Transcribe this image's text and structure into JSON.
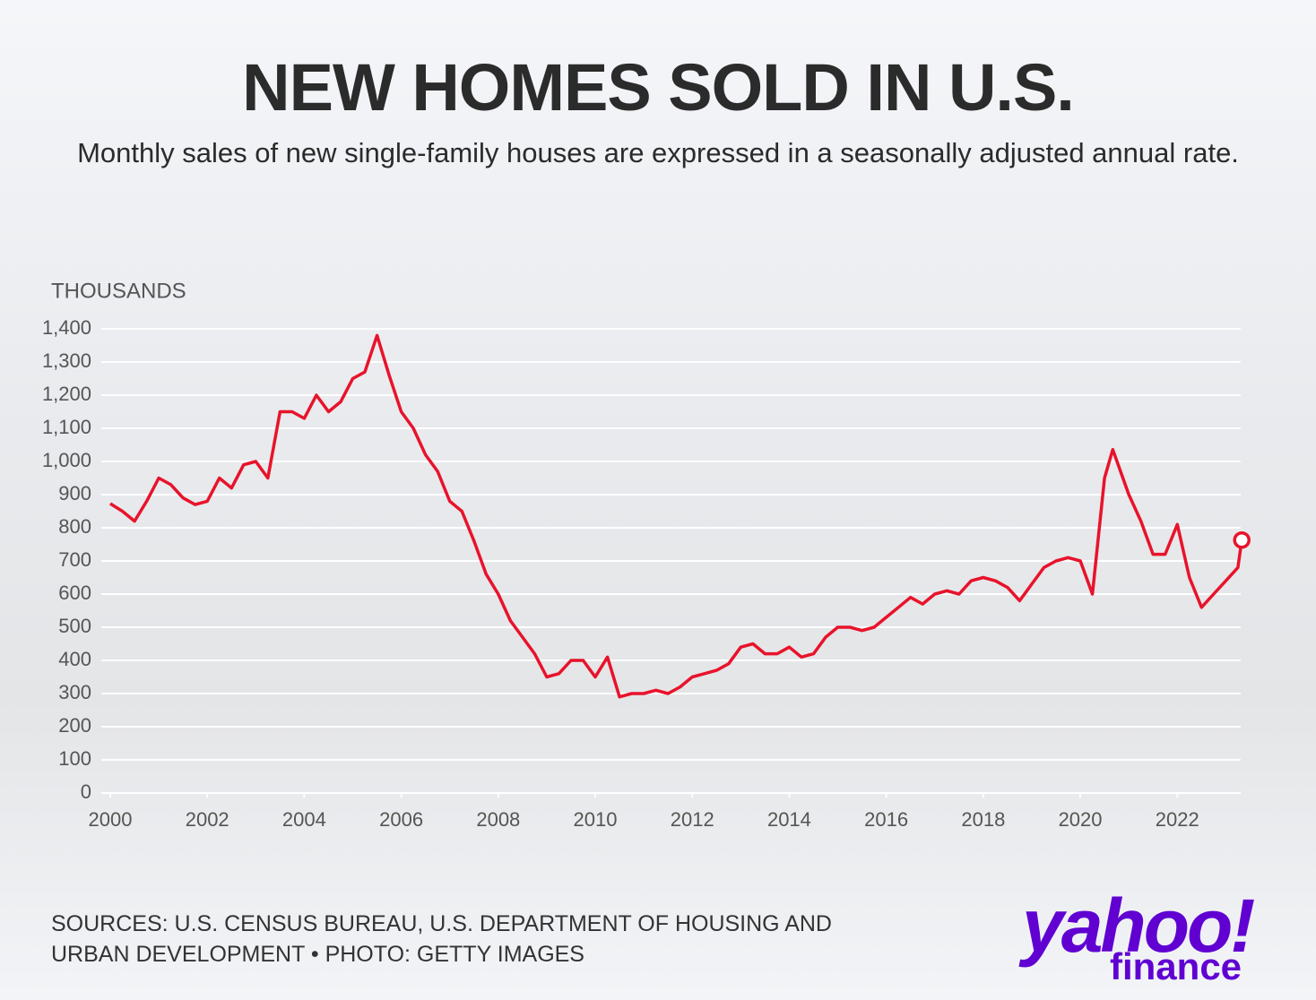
{
  "chart_data": {
    "type": "line",
    "title": "NEW HOMES SOLD IN U.S.",
    "subtitle": "Monthly sales of new single-family houses are expressed in a seasonally adjusted annual rate.",
    "y_axis_label": "THOUSANDS",
    "source": "SOURCES: U.S. CENSUS BUREAU, U.S. DEPARTMENT OF HOUSING AND URBAN DEVELOPMENT • PHOTO: GETTY IMAGES",
    "brand": "yahoo!",
    "brand_sub": "finance",
    "color": "#e8132b",
    "x": [
      2000,
      2000.25,
      2000.5,
      2000.75,
      2001,
      2001.25,
      2001.5,
      2001.75,
      2002,
      2002.25,
      2002.5,
      2002.75,
      2003,
      2003.25,
      2003.5,
      2003.75,
      2004,
      2004.25,
      2004.5,
      2004.75,
      2005,
      2005.25,
      2005.5,
      2005.75,
      2006,
      2006.25,
      2006.5,
      2006.75,
      2007,
      2007.25,
      2007.5,
      2007.75,
      2008,
      2008.25,
      2008.5,
      2008.75,
      2009,
      2009.25,
      2009.5,
      2009.75,
      2010,
      2010.25,
      2010.5,
      2010.75,
      2011,
      2011.25,
      2011.5,
      2011.75,
      2012,
      2012.25,
      2012.5,
      2012.75,
      2013,
      2013.25,
      2013.5,
      2013.75,
      2014,
      2014.25,
      2014.5,
      2014.75,
      2015,
      2015.25,
      2015.5,
      2015.75,
      2016,
      2016.25,
      2016.5,
      2016.75,
      2017,
      2017.25,
      2017.5,
      2017.75,
      2018,
      2018.25,
      2018.5,
      2018.75,
      2019,
      2019.25,
      2019.5,
      2019.75,
      2020,
      2020.25,
      2020.5,
      2020.67,
      2021,
      2021.25,
      2021.5,
      2021.75,
      2022,
      2022.25,
      2022.5,
      2022.75,
      2023,
      2023.25,
      2023.33
    ],
    "values": [
      873,
      850,
      820,
      880,
      950,
      930,
      890,
      870,
      880,
      950,
      920,
      990,
      1000,
      950,
      1150,
      1150,
      1130,
      1200,
      1150,
      1180,
      1250,
      1270,
      1380,
      1260,
      1150,
      1100,
      1020,
      970,
      880,
      850,
      760,
      660,
      600,
      520,
      470,
      420,
      350,
      360,
      400,
      400,
      350,
      410,
      290,
      300,
      300,
      310,
      300,
      320,
      350,
      360,
      370,
      390,
      440,
      450,
      420,
      420,
      440,
      410,
      420,
      470,
      500,
      500,
      490,
      500,
      530,
      560,
      590,
      570,
      600,
      610,
      600,
      640,
      650,
      640,
      620,
      580,
      630,
      680,
      700,
      710,
      700,
      600,
      950,
      1036,
      900,
      820,
      720,
      720,
      810,
      650,
      560,
      600,
      640,
      680,
      763
    ],
    "xlim": [
      2000,
      2023.4
    ],
    "xticks": [
      2000,
      2002,
      2004,
      2006,
      2008,
      2010,
      2012,
      2014,
      2016,
      2018,
      2020,
      2022
    ],
    "ylim": [
      0,
      1400
    ],
    "yticks": [
      0,
      100,
      200,
      300,
      400,
      500,
      600,
      700,
      800,
      900,
      {
        "value": 1000,
        "label": "1,000"
      },
      {
        "value": 1100,
        "label": "1,100"
      },
      {
        "value": 1200,
        "label": "1,200"
      },
      {
        "value": 1300,
        "label": "1,300"
      },
      {
        "value": 1400,
        "label": "1,400"
      }
    ],
    "grid": true
  }
}
